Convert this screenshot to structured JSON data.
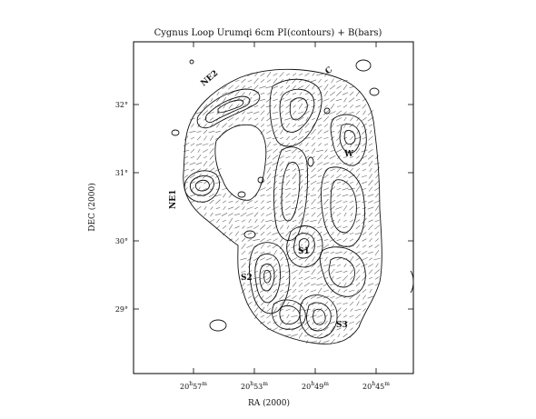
{
  "title": "Cygnus Loop Urumqi 6cm PI(contours) + B(bars)",
  "axes": {
    "x_label": "RA (2000)",
    "y_label": "DEC (2000)",
    "x_ticks": [
      {
        "h": "20",
        "m": "57"
      },
      {
        "h": "20",
        "m": "53"
      },
      {
        "h": "20",
        "m": "49"
      },
      {
        "h": "20",
        "m": "45"
      }
    ],
    "y_ticks": [
      "32°",
      "31°",
      "30°",
      "29°"
    ],
    "ra_range_label": "20h58m–20h43m",
    "dec_range_label": "28°–33°"
  },
  "annotations": [
    {
      "text": "NE2",
      "id": "ne2"
    },
    {
      "text": "NE1",
      "id": "ne1"
    },
    {
      "text": "C",
      "id": "c"
    },
    {
      "text": "W",
      "id": "w"
    },
    {
      "text": "S1",
      "id": "s1"
    },
    {
      "text": "S2",
      "id": "s2"
    },
    {
      "text": "S3",
      "id": "s3"
    }
  ],
  "colors": {
    "contour": "#111111",
    "bars": "#666666",
    "frame": "#000000",
    "background": "#ffffff"
  }
}
